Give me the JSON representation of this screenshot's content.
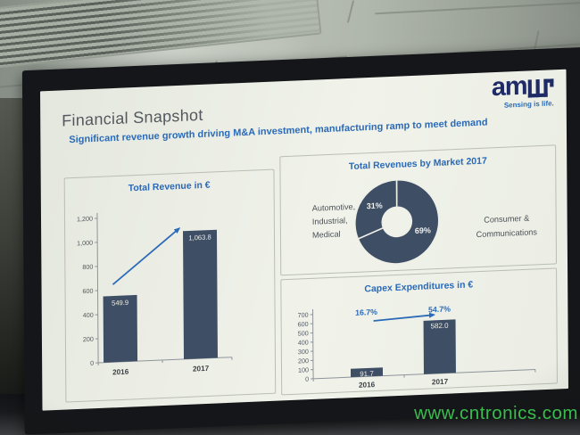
{
  "photo": {
    "watermark": "www.cntronics.com"
  },
  "slide": {
    "title": "Financial Snapshot",
    "subtitle": "Significant revenue growth driving M&A investment, manufacturing ramp to meet demand",
    "logo": {
      "text": "am",
      "tagline": "Sensing is life."
    }
  },
  "chart_data": [
    {
      "type": "bar",
      "title": "Total Revenue in €",
      "categories": [
        "2016",
        "2017"
      ],
      "values": [
        549.9,
        1063.8
      ],
      "value_labels": [
        "549.9",
        "1,063.8"
      ],
      "ylim": [
        0,
        1200
      ],
      "ytick_step": 200,
      "grid": false,
      "annotations": [
        {
          "type": "growth-arrow",
          "from": "2016",
          "to": "2017"
        }
      ]
    },
    {
      "type": "pie",
      "donut": true,
      "title": "Total Revenues by Market 2017",
      "slices": [
        {
          "label": "Automotive, Industrial, Medical",
          "label_lines": [
            "Automotive,",
            "Industrial,",
            "Medical"
          ],
          "pct": 31
        },
        {
          "label": "Consumer & Communications",
          "label_lines": [
            "Consumer &",
            "Communications"
          ],
          "pct": 69
        }
      ]
    },
    {
      "type": "bar",
      "title": "Capex Expenditures in €",
      "categories": [
        "2016",
        "2017"
      ],
      "values": [
        91.7,
        582.0
      ],
      "value_labels": [
        "91.7",
        "582.0"
      ],
      "pct_labels": [
        "16.7%",
        "54.7%"
      ],
      "ylim": [
        0,
        700
      ],
      "ytick_step": 100,
      "grid": false,
      "annotations": [
        {
          "type": "growth-arrow",
          "from": "2016",
          "to": "2017"
        }
      ]
    }
  ],
  "colors": {
    "accent_blue": "#2a6ab8",
    "logo_navy": "#1f2b66",
    "bar_fill": "#3e4e64",
    "slide_bg": "#eef0e8",
    "watermark_green": "#3ec452",
    "value_label_white": "#edefe9"
  }
}
